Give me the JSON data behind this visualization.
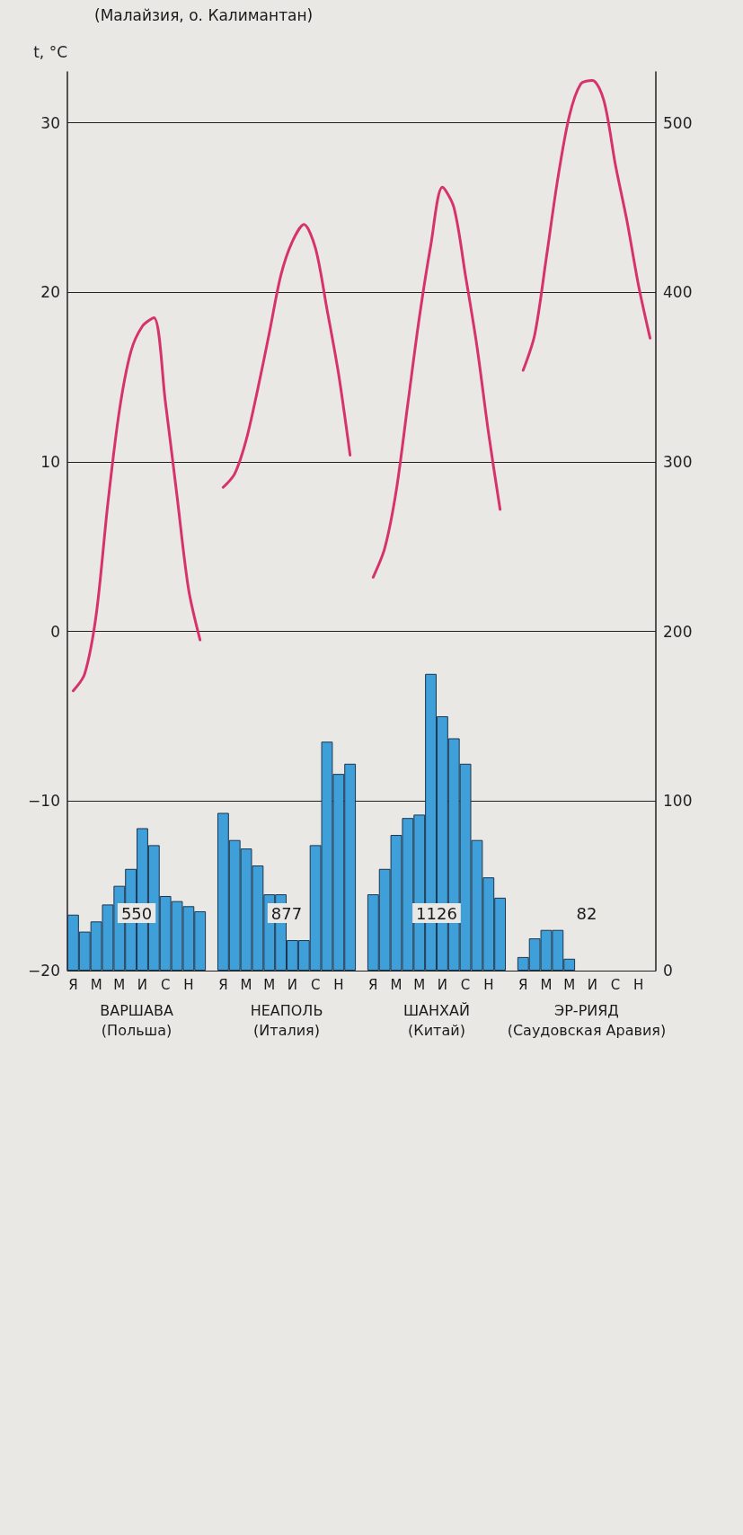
{
  "chart_data": {
    "type": "bar",
    "ylabel": "t, °C",
    "categories": [
      "Я",
      null,
      "М",
      null,
      "М",
      null,
      "И",
      null,
      "С",
      null,
      "Н",
      null,
      null,
      "Я",
      null,
      "М",
      null,
      "М",
      null,
      "И",
      null,
      "С",
      null,
      "Н",
      null,
      null,
      "Я",
      null,
      "М",
      null,
      "М",
      null,
      "И",
      null,
      "С",
      null,
      "Н",
      null,
      null,
      "Я",
      null,
      "М",
      null,
      "М",
      null,
      "И",
      null,
      "С",
      null,
      "Н",
      null
    ],
    "series": [
      {
        "axis": "y2",
        "color": "#3f9fd8",
        "values": [
          33,
          23,
          29,
          39,
          50,
          60,
          84,
          74,
          44,
          41,
          38,
          35,
          null,
          93,
          77,
          72,
          62,
          45,
          45,
          18,
          18,
          74,
          135,
          116,
          122,
          null,
          45,
          60,
          80,
          90,
          92,
          175,
          150,
          137,
          122,
          77,
          55,
          43,
          null,
          8,
          19,
          24,
          24,
          7,
          0,
          0,
          0,
          0,
          0,
          0,
          0
        ]
      },
      {
        "type": "line",
        "color": "#d6336c",
        "values": [
          -3.5,
          -2.5,
          1,
          7.5,
          13,
          16.5,
          18,
          18.5,
          13.5,
          8,
          2.5,
          -0.5,
          null,
          null,
          null,
          null,
          null,
          null,
          null,
          null,
          null,
          null,
          null,
          null,
          null,
          null,
          null,
          null,
          null,
          null,
          null,
          null,
          null,
          null,
          null,
          null,
          null,
          null,
          null,
          null,
          null,
          null,
          null,
          null,
          null,
          null,
          null,
          null,
          null,
          null,
          null
        ]
      },
      {
        "type": "line",
        "color": "#d6336c",
        "values": [
          null,
          null,
          null,
          null,
          null,
          null,
          null,
          null,
          null,
          null,
          null,
          null,
          null,
          8.5,
          9.3,
          11.3,
          14.3,
          17.6,
          21,
          23,
          24,
          22.6,
          19,
          15.2,
          10.4,
          null,
          null,
          null,
          null,
          null,
          null,
          null,
          null,
          null,
          null,
          null,
          null,
          null,
          null,
          null,
          null,
          null,
          null,
          null,
          null,
          null,
          null,
          null,
          null,
          null,
          null
        ]
      },
      {
        "type": "line",
        "color": "#d6336c",
        "values": [
          null,
          null,
          null,
          null,
          null,
          null,
          null,
          null,
          null,
          null,
          null,
          null,
          null,
          null,
          null,
          null,
          null,
          null,
          null,
          null,
          null,
          null,
          null,
          null,
          null,
          null,
          3.2,
          4.9,
          8.3,
          13.4,
          18.5,
          22.8,
          26.2,
          25,
          21,
          16.8,
          11.7,
          7.2,
          null,
          null,
          null,
          null,
          null,
          null,
          null,
          null,
          null,
          null,
          null,
          null,
          null
        ]
      },
      {
        "type": "line",
        "color": "#d6336c",
        "values": [
          null,
          null,
          null,
          null,
          null,
          null,
          null,
          null,
          null,
          null,
          null,
          null,
          null,
          null,
          null,
          null,
          null,
          null,
          null,
          null,
          null,
          null,
          null,
          null,
          null,
          null,
          null,
          null,
          null,
          null,
          null,
          null,
          null,
          null,
          null,
          null,
          null,
          null,
          null,
          15.4,
          17.5,
          22,
          26.7,
          30.4,
          32.3,
          32.5,
          31.3,
          27.5,
          24.2,
          20.4,
          17.3
        ]
      }
    ],
    "ylim": [
      -20,
      33
    ],
    "yticks": [
      -20,
      -10,
      0,
      10,
      20,
      30
    ],
    "y2lim": [
      0,
      530
    ],
    "y2ticks": [
      0,
      100,
      200,
      300,
      400,
      500
    ],
    "grid": "y",
    "marker": "none",
    "annotations": [
      "(Малайзия, о. Калимантан)",
      "ВАРШАВА",
      "(Польша)",
      "550",
      "НЕАПОЛЬ",
      "(Италия)",
      "877",
      "ШАНХАЙ",
      "(Китай)",
      "1126",
      "ЭР-РИЯД",
      "(Саудовская Аравия)",
      "82"
    ]
  }
}
